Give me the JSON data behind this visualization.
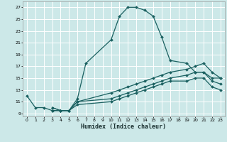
{
  "xlabel": "Humidex (Indice chaleur)",
  "background_color": "#cce8e8",
  "grid_color": "#ffffff",
  "line_color": "#1a6060",
  "xlim": [
    -0.5,
    23.5
  ],
  "ylim": [
    8.5,
    28
  ],
  "yticks": [
    9,
    11,
    13,
    15,
    17,
    19,
    21,
    23,
    25,
    27
  ],
  "xticks": [
    0,
    1,
    2,
    3,
    4,
    5,
    6,
    7,
    8,
    9,
    10,
    11,
    12,
    13,
    14,
    15,
    16,
    17,
    18,
    19,
    20,
    21,
    22,
    23
  ],
  "curve1_x": [
    0,
    1,
    2,
    3,
    4,
    5,
    6,
    7,
    10,
    11,
    12,
    13,
    14,
    15,
    16,
    17,
    19,
    20,
    21,
    22,
    23
  ],
  "curve1_y": [
    12,
    10,
    10,
    9.5,
    9.5,
    9.5,
    11.5,
    17.5,
    21.5,
    25.5,
    27,
    27,
    26.5,
    25.5,
    22,
    18,
    17.5,
    16,
    16,
    15,
    15
  ],
  "curve2_x": [
    3,
    4,
    5,
    6,
    10,
    11,
    12,
    13,
    14,
    15,
    16,
    17,
    19,
    20,
    21,
    22,
    23
  ],
  "curve2_y": [
    10,
    9.5,
    9.5,
    11,
    12.5,
    13,
    13.5,
    14,
    14.5,
    15,
    15.5,
    16,
    16.5,
    17,
    17.5,
    16,
    15
  ],
  "curve3_x": [
    3,
    4,
    5,
    6,
    10,
    11,
    12,
    13,
    14,
    15,
    16,
    17,
    19,
    20,
    21,
    22,
    23
  ],
  "curve3_y": [
    10,
    9.5,
    9.5,
    11,
    11.5,
    12,
    12.5,
    13,
    13.5,
    14,
    14.5,
    15,
    15.5,
    16,
    16,
    14.5,
    14
  ],
  "curve4_x": [
    3,
    4,
    5,
    6,
    10,
    11,
    12,
    13,
    14,
    15,
    16,
    17,
    19,
    20,
    21,
    22,
    23
  ],
  "curve4_y": [
    9.5,
    9.5,
    9.5,
    10.5,
    11,
    11.5,
    12,
    12.5,
    13,
    13.5,
    14,
    14.5,
    14.5,
    15,
    15,
    13.5,
    13
  ]
}
